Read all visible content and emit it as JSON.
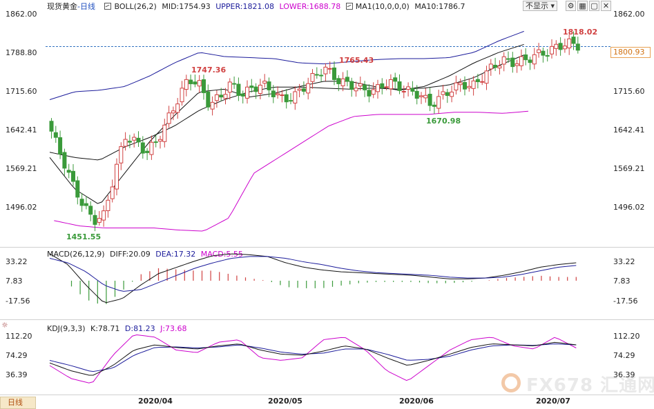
{
  "main_panel": {
    "symbol": "现货黄金",
    "period": "-日线",
    "boll_label": "BOLL(26,2)",
    "mid": "MID:1754.93",
    "upper": "UPPER:1821.08",
    "lower": "LOWER:1688.78",
    "ma_label": "MA1(10,0,0,0)",
    "ma10": "MA10:1786.7",
    "y_ticks": [
      "1862.00",
      "1788.80",
      "1715.60",
      "1642.41",
      "1569.21",
      "1496.02"
    ],
    "current_price": "1800.93",
    "annotations": [
      "1818.02",
      "1765.43",
      "1747.36",
      "1670.98",
      "1451.55"
    ]
  },
  "controls": {
    "hide_label": "不显示",
    "dropdown_icon": "chevron-down-icon",
    "buttons": [
      "settings-icon",
      "grid-icon",
      "maximize-icon",
      "close-icon"
    ]
  },
  "macd_panel": {
    "label": "MACD(26,12,9)",
    "diff": "DIFF:20.09",
    "dea": "DEA:17.32",
    "macd": "MACD:5.55",
    "y_ticks": [
      "33.22",
      "7.83",
      "-17.56"
    ]
  },
  "kdj_panel": {
    "label": "KDJ(9,3,3)",
    "k": "K:78.71",
    "d": "D:81.23",
    "j": "J:73.68",
    "y_ticks": [
      "112.20",
      "74.29",
      "36.39"
    ]
  },
  "x_axis": [
    "2020/04",
    "2020/05",
    "2020/06",
    "2020/07"
  ],
  "bottom_tab": "日线",
  "watermark": "FX678 汇通网",
  "colors": {
    "up": "#d04040",
    "down": "#3a9a3a",
    "upper_band": "#1a1a9a",
    "lower_band": "#cc00cc",
    "mid_line": "#111111",
    "current_price_line": "#3070c0",
    "price_tag": "#d07010"
  }
}
